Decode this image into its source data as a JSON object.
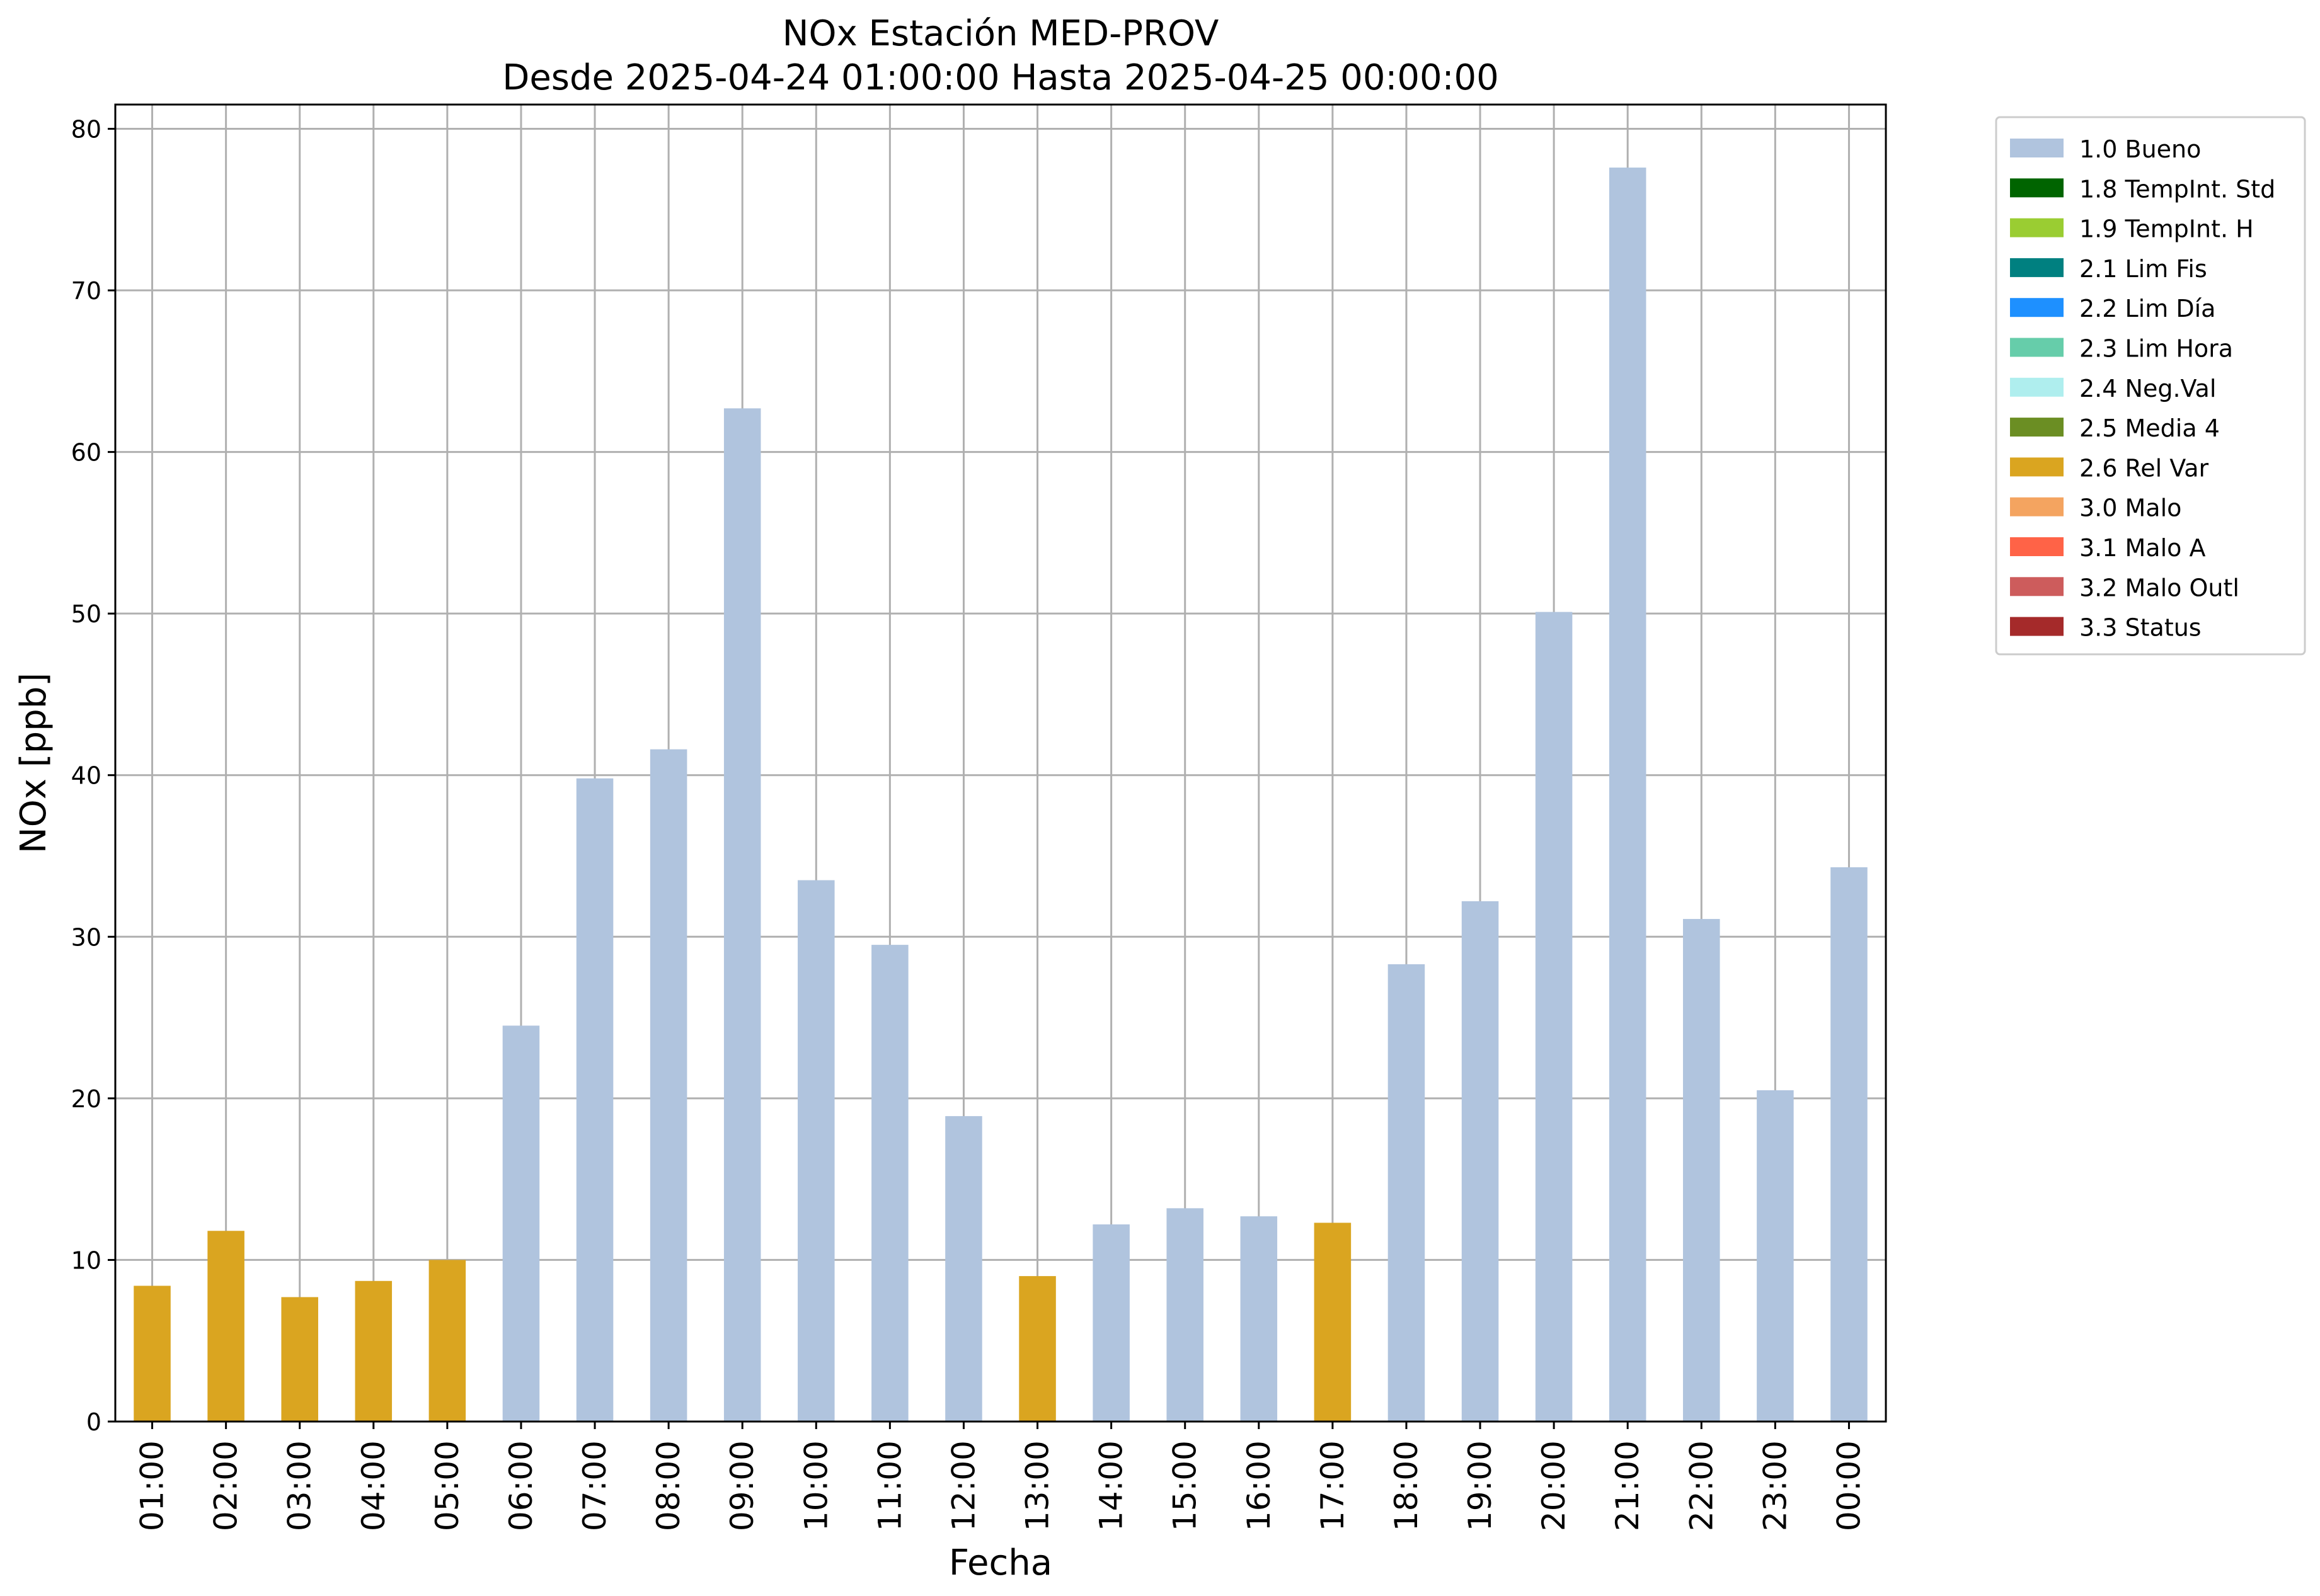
{
  "chart_data": {
    "type": "bar",
    "title": "NOx Estación MED-PROV",
    "subtitle": "Desde 2025-04-24 01:00:00 Hasta 2025-04-25 00:00:00",
    "xlabel": "Fecha",
    "ylabel": "NOx [ppb]",
    "ylim": [
      0,
      81.5
    ],
    "yticks": [
      0,
      10,
      20,
      30,
      40,
      50,
      60,
      70,
      80
    ],
    "grid": true,
    "legend_position": "outside-top-right",
    "categories": [
      "01:00",
      "02:00",
      "03:00",
      "04:00",
      "05:00",
      "06:00",
      "07:00",
      "08:00",
      "09:00",
      "10:00",
      "11:00",
      "12:00",
      "13:00",
      "14:00",
      "15:00",
      "16:00",
      "17:00",
      "18:00",
      "19:00",
      "20:00",
      "21:00",
      "22:00",
      "23:00",
      "00:00"
    ],
    "values": [
      8.4,
      11.8,
      7.7,
      8.7,
      10.0,
      24.5,
      39.8,
      41.6,
      62.7,
      33.5,
      29.5,
      18.9,
      9.0,
      12.2,
      13.2,
      12.7,
      12.3,
      28.3,
      32.2,
      50.1,
      77.6,
      31.1,
      20.5,
      34.3
    ],
    "flags": [
      "2.6 Rel Var",
      "2.6 Rel Var",
      "2.6 Rel Var",
      "2.6 Rel Var",
      "2.6 Rel Var",
      "1.0 Bueno",
      "1.0 Bueno",
      "1.0 Bueno",
      "1.0 Bueno",
      "1.0 Bueno",
      "1.0 Bueno",
      "1.0 Bueno",
      "2.6 Rel Var",
      "1.0 Bueno",
      "1.0 Bueno",
      "1.0 Bueno",
      "2.6 Rel Var",
      "1.0 Bueno",
      "1.0 Bueno",
      "1.0 Bueno",
      "1.0 Bueno",
      "1.0 Bueno",
      "1.0 Bueno",
      "1.0 Bueno"
    ],
    "legend": [
      {
        "label": "1.0 Bueno",
        "color": "#b0c4de"
      },
      {
        "label": "1.8 TempInt. Std",
        "color": "#006400"
      },
      {
        "label": "1.9 TempInt. H",
        "color": "#9acd32"
      },
      {
        "label": "2.1 Lim Fis",
        "color": "#008080"
      },
      {
        "label": "2.2 Lim Día",
        "color": "#1e90ff"
      },
      {
        "label": "2.3 Lim Hora",
        "color": "#66cdaa"
      },
      {
        "label": "2.4 Neg.Val",
        "color": "#afeeee"
      },
      {
        "label": "2.5 Media 4",
        "color": "#6b8e23"
      },
      {
        "label": "2.6 Rel Var",
        "color": "#daa520"
      },
      {
        "label": "3.0 Malo",
        "color": "#f4a460"
      },
      {
        "label": "3.1 Malo A",
        "color": "#ff6347"
      },
      {
        "label": "3.2 Malo Outl",
        "color": "#cd5c5c"
      },
      {
        "label": "3.3 Status",
        "color": "#a52a2a"
      }
    ]
  }
}
